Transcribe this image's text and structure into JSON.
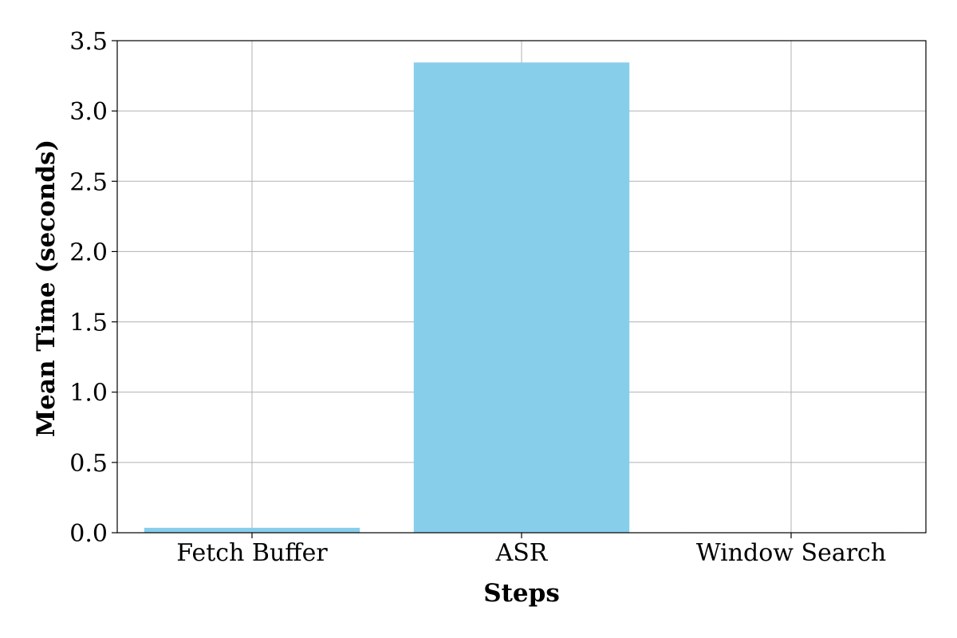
{
  "chart_data": {
    "type": "bar",
    "title": "",
    "xlabel": "Steps",
    "ylabel": "Mean Time (seconds)",
    "categories": [
      "Fetch Buffer",
      "ASR",
      "Window Search"
    ],
    "values": [
      0.035,
      3.345,
      0.003
    ],
    "ylim": [
      0,
      3.5
    ],
    "yticks": [
      0.0,
      0.5,
      1.0,
      1.5,
      2.0,
      2.5,
      3.0,
      3.5
    ],
    "ytick_labels": [
      "0.0",
      "0.5",
      "1.0",
      "1.5",
      "2.0",
      "2.5",
      "3.0",
      "3.5"
    ],
    "grid": true,
    "colors": {
      "bar": "#87ceeb"
    }
  }
}
